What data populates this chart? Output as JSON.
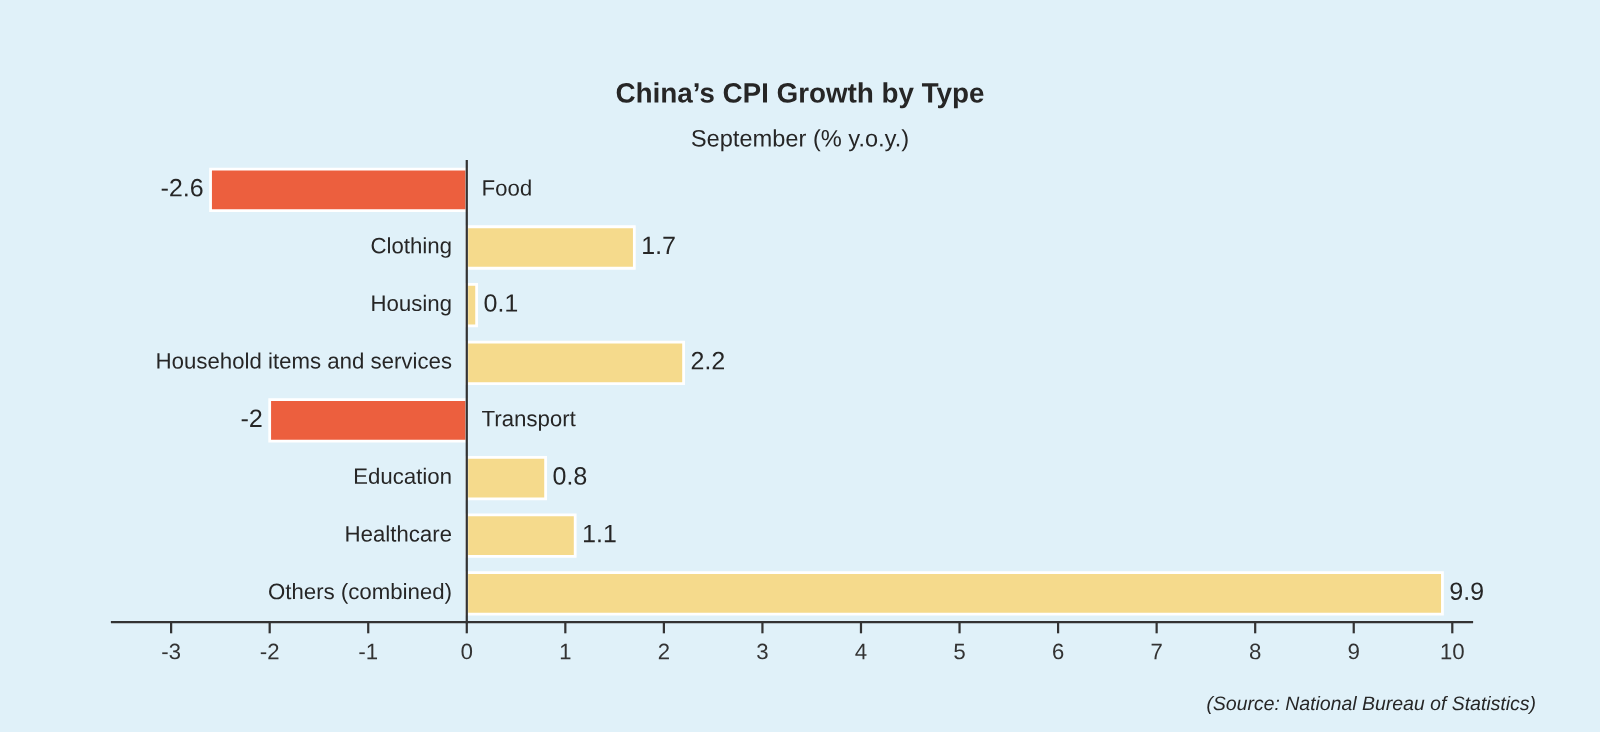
{
  "chart_data": {
    "type": "bar",
    "orientation": "horizontal",
    "title": "China’s CPI Growth by Type",
    "subtitle": "September (% y.o.y.)",
    "categories": [
      "Food",
      "Clothing",
      "Housing",
      "Household items and services",
      "Transport",
      "Education",
      "Healthcare",
      "Others (combined)"
    ],
    "values": [
      -2.6,
      1.7,
      0.1,
      2.2,
      -2,
      0.8,
      1.1,
      9.9
    ],
    "colors": [
      "#ec5f3e",
      "#f5da8c",
      "#f5da8c",
      "#f5da8c",
      "#ec5f3e",
      "#f5da8c",
      "#f5da8c",
      "#f5da8c"
    ],
    "data_labels": true,
    "xlim": [
      -3.6,
      10.2
    ],
    "xticks": [
      -3,
      -2,
      -1,
      0,
      1,
      2,
      3,
      4,
      5,
      6,
      7,
      8,
      9,
      10
    ],
    "grid": false,
    "legend": false,
    "annotations": [
      "(Source: National Bureau of Statistics)"
    ]
  }
}
